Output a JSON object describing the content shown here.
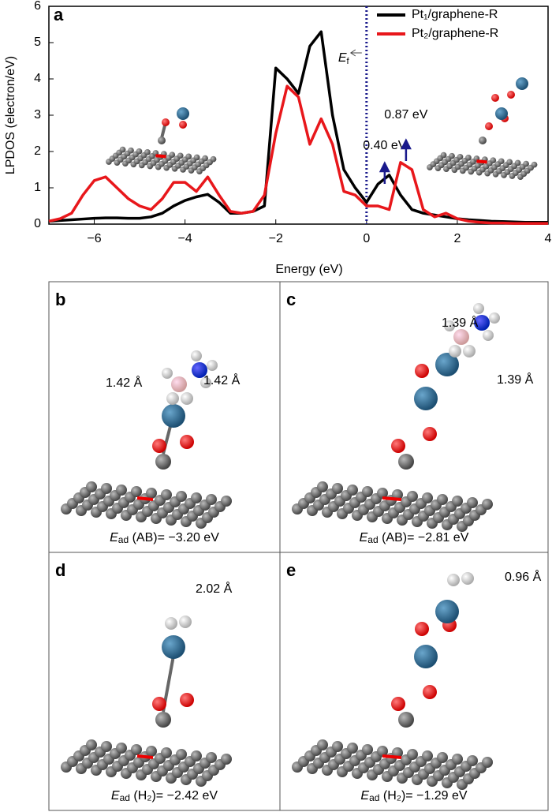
{
  "chart_data": {
    "type": "line",
    "panel_label": "a",
    "xlabel": "Energy (eV)",
    "ylabel": "LPDOS (electron/eV)",
    "xlim": [
      -7,
      4
    ],
    "ylim": [
      0,
      6
    ],
    "xticks": [
      {
        "value": -6,
        "label": "−6"
      },
      {
        "value": -4,
        "label": "−4"
      },
      {
        "value": -2,
        "label": "−2"
      },
      0,
      2,
      4
    ],
    "yticks": [
      0,
      1,
      2,
      3,
      4,
      5,
      6
    ],
    "legend": "top-right",
    "fermi_level": 0,
    "fermi_label": {
      "main": "E",
      "sub": "f"
    },
    "x": [
      -7,
      -6.75,
      -6.5,
      -6.25,
      -6,
      -5.75,
      -5.5,
      -5.25,
      -5,
      -4.75,
      -4.5,
      -4.25,
      -4,
      -3.75,
      -3.5,
      -3.25,
      -3,
      -2.75,
      -2.5,
      -2.25,
      -2,
      -1.75,
      -1.5,
      -1.25,
      -1,
      -0.75,
      -0.5,
      -0.25,
      0,
      0.25,
      0.5,
      0.75,
      1,
      1.25,
      1.5,
      1.75,
      2,
      2.25,
      2.5,
      2.75,
      3,
      3.25,
      3.5,
      3.75,
      4
    ],
    "series": [
      {
        "name": "Pt₁/graphene-R",
        "color": "#000000",
        "values": [
          0.08,
          0.1,
          0.12,
          0.14,
          0.16,
          0.17,
          0.17,
          0.16,
          0.16,
          0.2,
          0.3,
          0.5,
          0.65,
          0.75,
          0.82,
          0.6,
          0.3,
          0.3,
          0.35,
          0.5,
          4.3,
          4.0,
          3.6,
          4.9,
          5.3,
          3.0,
          1.5,
          1.0,
          0.6,
          1.1,
          1.35,
          0.8,
          0.4,
          0.3,
          0.25,
          0.2,
          0.15,
          0.12,
          0.1,
          0.08,
          0.07,
          0.06,
          0.05,
          0.05,
          0.05
        ]
      },
      {
        "name": "Pt₂/graphene-R",
        "color": "#e8171b",
        "values": [
          0.08,
          0.15,
          0.3,
          0.8,
          1.2,
          1.3,
          1.0,
          0.7,
          0.5,
          0.4,
          0.7,
          1.15,
          1.15,
          0.9,
          1.3,
          0.8,
          0.35,
          0.3,
          0.35,
          0.8,
          2.5,
          3.8,
          3.5,
          2.2,
          2.9,
          2.2,
          0.9,
          0.8,
          0.5,
          0.5,
          0.4,
          1.7,
          1.5,
          0.4,
          0.2,
          0.3,
          0.15,
          0.08,
          0.05,
          0.03,
          0.03,
          0.02,
          0.02,
          0.02,
          0.02
        ]
      }
    ],
    "annotations": [
      {
        "text": "0.40 eV",
        "x": 0.4
      },
      {
        "text": "0.87 eV",
        "x": 0.87
      }
    ]
  },
  "panels": [
    {
      "letter": "b",
      "energy": {
        "main": "E",
        "sub": "ad",
        "rest": " (AB)= −3.20 eV"
      },
      "labels": [
        "1.42 Å",
        "1.42 Å"
      ]
    },
    {
      "letter": "c",
      "energy": {
        "main": "E",
        "sub": "ad",
        "rest": " (AB)= −2.81 eV"
      },
      "labels": [
        "1.39 Å",
        "1.39 Å"
      ]
    },
    {
      "letter": "d",
      "energy": {
        "main": "E",
        "sub": "ad",
        "rest": " (H₂)= −2.42 eV"
      },
      "labels": [
        "2.02 Å"
      ]
    },
    {
      "letter": "e",
      "energy": {
        "main": "E",
        "sub": "ad",
        "rest": " (H₂)= −1.29 eV"
      },
      "labels": [
        "0.96 Å"
      ]
    }
  ]
}
